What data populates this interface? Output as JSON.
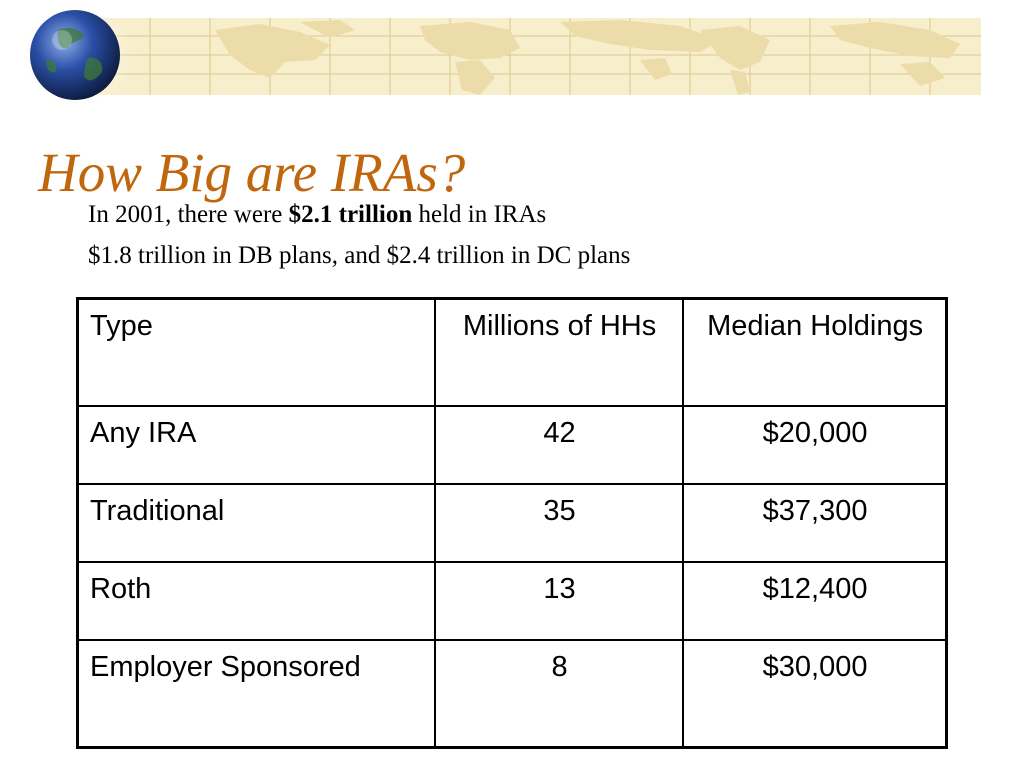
{
  "slide": {
    "title": "How Big are IRAs?",
    "line1_prefix": "In 2001, there were ",
    "line1_bold": "$2.1 trillion",
    "line1_suffix": " held in IRAs",
    "line2": "$1.8 trillion in DB plans, and $2.4 trillion in DC plans"
  },
  "table": {
    "headers": [
      "Type",
      "Millions of HHs",
      "Median Holdings"
    ],
    "rows": [
      {
        "type": "Any IRA",
        "hhs": "42",
        "median": "$20,000"
      },
      {
        "type": "Traditional",
        "hhs": "35",
        "median": "$37,300"
      },
      {
        "type": "Roth",
        "hhs": "13",
        "median": "$12,400"
      },
      {
        "type": "Employer Sponsored",
        "hhs": "8",
        "median": "$30,000"
      }
    ]
  },
  "colors": {
    "title": "#c0660e",
    "banner": "#f7eecb",
    "map": "#ecdcaa",
    "globe": "#23418f"
  }
}
